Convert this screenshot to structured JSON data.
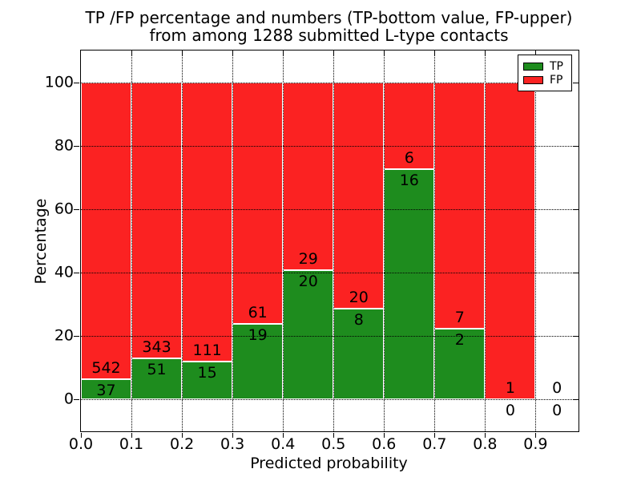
{
  "title": {
    "line1": "TP /FP percentage and numbers (TP-bottom value, FP-upper)",
    "line2": "from among 1288 submitted L-type contacts"
  },
  "colors": {
    "tp": "#1e8c1e",
    "fp": "#fb2222",
    "bar_edge": "#ffffff",
    "grid": "#000000",
    "text": "#000000"
  },
  "chart_data": {
    "type": "bar",
    "stacked": true,
    "normalized": "percent of bin total",
    "title": "TP /FP percentage and numbers (TP-bottom value, FP-upper) from among 1288 submitted L-type contacts",
    "xlabel": "Predicted probability",
    "ylabel": "Percentage",
    "xlim": [
      0,
      0.985
    ],
    "ylim": [
      -10,
      110
    ],
    "bin_width": 0.1,
    "grid": true,
    "xticks": [
      {
        "v": 0.0,
        "label": "0.0"
      },
      {
        "v": 0.1,
        "label": "0.1"
      },
      {
        "v": 0.2,
        "label": "0.2"
      },
      {
        "v": 0.3,
        "label": "0.3"
      },
      {
        "v": 0.4,
        "label": "0.4"
      },
      {
        "v": 0.5,
        "label": "0.5"
      },
      {
        "v": 0.6,
        "label": "0.6"
      },
      {
        "v": 0.7,
        "label": "0.7"
      },
      {
        "v": 0.8,
        "label": "0.8"
      },
      {
        "v": 0.9,
        "label": "0.9"
      }
    ],
    "yticks": [
      {
        "v": 0,
        "label": "0"
      },
      {
        "v": 20,
        "label": "20"
      },
      {
        "v": 40,
        "label": "40"
      },
      {
        "v": 60,
        "label": "60"
      },
      {
        "v": 80,
        "label": "80"
      },
      {
        "v": 100,
        "label": "100"
      }
    ],
    "bins": [
      {
        "x0": 0.0,
        "tp": 37,
        "fp": 542
      },
      {
        "x0": 0.1,
        "tp": 51,
        "fp": 343
      },
      {
        "x0": 0.2,
        "tp": 15,
        "fp": 111
      },
      {
        "x0": 0.3,
        "tp": 19,
        "fp": 61
      },
      {
        "x0": 0.4,
        "tp": 20,
        "fp": 29
      },
      {
        "x0": 0.5,
        "tp": 8,
        "fp": 20
      },
      {
        "x0": 0.6,
        "tp": 16,
        "fp": 6
      },
      {
        "x0": 0.7,
        "tp": 2,
        "fp": 7
      },
      {
        "x0": 0.8,
        "tp": 0,
        "fp": 1
      },
      {
        "x0": 0.9,
        "tp": 0,
        "fp": 0
      }
    ],
    "series": [
      {
        "name": "TP",
        "values": [
          37,
          51,
          15,
          19,
          20,
          8,
          16,
          2,
          0,
          0
        ]
      },
      {
        "name": "FP",
        "values": [
          542,
          343,
          111,
          61,
          29,
          20,
          6,
          7,
          1,
          0
        ]
      }
    ],
    "legend": {
      "position": "upper right",
      "entries": [
        {
          "label": "TP",
          "color_key": "tp"
        },
        {
          "label": "FP",
          "color_key": "fp"
        }
      ]
    }
  }
}
